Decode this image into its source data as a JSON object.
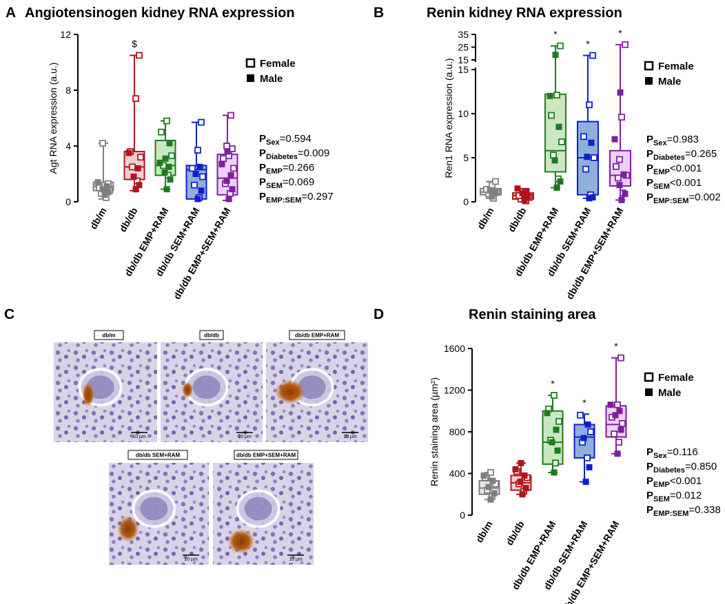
{
  "groups": [
    "db/m",
    "db/db",
    "db/db EMP+RAM",
    "db/db SEM+RAM",
    "db/db EMP+SEM+RAM"
  ],
  "colors": [
    "#7f7f7f",
    "#b0151d",
    "#1f7a1f",
    "#1020c8",
    "#7e1fa0"
  ],
  "fills": [
    "#e6e6e6",
    "#f2d0d2",
    "#c9e8c2",
    "#8fb0dd",
    "#efd0f6"
  ],
  "legend": {
    "female": "Female",
    "male": "Male"
  },
  "panels": {
    "A": {
      "letter": "A",
      "title": "Angiotensinogen kidney RNA expression",
      "stats": [
        [
          "P",
          "Sex",
          "=0.594"
        ],
        [
          "P",
          "Diabetes",
          "=0.009"
        ],
        [
          "P",
          "EMP",
          "=0.266"
        ],
        [
          "P",
          "SEM",
          "=0.069"
        ],
        [
          "P",
          "EMP:SEM",
          "=0.297"
        ]
      ]
    },
    "B": {
      "letter": "B",
      "title": "Renin kidney RNA expression",
      "stats": [
        [
          "P",
          "Sex",
          "=0.983"
        ],
        [
          "P",
          "Diabetes",
          "=0.265"
        ],
        [
          "P",
          "EMP",
          "<0.001"
        ],
        [
          "P",
          "SEM",
          "<0.001"
        ],
        [
          "P",
          "EMP:SEM",
          "=0.002"
        ]
      ]
    },
    "C": {
      "letter": "C",
      "images": [
        "db/m",
        "db/db",
        "db/db EMP+RAM",
        "db/db SEM+RAM",
        "db/db EMP+SEM+RAM"
      ],
      "scale_bar": "10 µm"
    },
    "D": {
      "letter": "D",
      "title": "Renin staining area",
      "stats": [
        [
          "P",
          "Sex",
          "=0.116"
        ],
        [
          "P",
          "Diabetes",
          "=0.850"
        ],
        [
          "P",
          "EMP",
          "<0.001"
        ],
        [
          "P",
          "SEM",
          "=0.012"
        ],
        [
          "P",
          "EMP:SEM",
          "=0.338"
        ]
      ]
    }
  },
  "chart_data": [
    {
      "type": "box",
      "title": "Angiotensinogen kidney RNA expression",
      "ylabel": "Agt RNA expression (a.u.)",
      "ylim": [
        0,
        12
      ],
      "yticks": [
        "0",
        "4",
        "8",
        "12"
      ],
      "yticks_values": [
        0,
        4,
        8,
        12
      ],
      "categories": [
        "db/m",
        "db/db",
        "db/db EMP+RAM",
        "db/db SEM+RAM",
        "db/db EMP+SEM+RAM"
      ],
      "annotations": [
        "",
        "$",
        "",
        "",
        ""
      ],
      "boxes": [
        {
          "min": 0.2,
          "q1": 0.8,
          "median": 1.1,
          "q3": 1.4,
          "max": 4.2
        },
        {
          "min": 0.8,
          "q1": 1.6,
          "median": 2.5,
          "q3": 3.6,
          "max": 10.5
        },
        {
          "min": 0.9,
          "q1": 1.9,
          "median": 2.6,
          "q3": 4.4,
          "max": 5.8
        },
        {
          "min": 0.2,
          "q1": 0.2,
          "median": 2.3,
          "q3": 2.6,
          "max": 5.7
        },
        {
          "min": 0.1,
          "q1": 0.5,
          "median": 1.7,
          "q3": 3.4,
          "max": 6.2
        }
      ],
      "points": [
        {
          "female": [
            0.3,
            0.6,
            0.8,
            1.0,
            1.2,
            1.3,
            4.2
          ],
          "male": [
            0.5,
            0.7,
            0.9,
            1.1,
            1.4
          ]
        },
        {
          "female": [
            1.5,
            2.5,
            3.2,
            3.6,
            7.4,
            10.5
          ],
          "male": [
            0.9,
            1.2,
            1.8,
            2.4,
            3.5
          ]
        },
        {
          "female": [
            1.9,
            2.6,
            3.3,
            5.0,
            5.8
          ],
          "male": [
            0.9,
            1.6,
            2.1,
            2.5,
            2.8,
            3.1,
            4.2
          ]
        },
        {
          "female": [
            0.3,
            1.2,
            1.8,
            2.4,
            3.7,
            5.7
          ],
          "male": [
            0.2,
            0.8,
            2.0,
            2.5
          ]
        },
        {
          "female": [
            0.6,
            1.3,
            2.4,
            3.1,
            3.3,
            3.8,
            4.0,
            6.2
          ],
          "male": [
            0.2,
            0.9,
            1.5,
            1.9,
            2.7,
            3.6
          ]
        }
      ]
    },
    {
      "type": "box",
      "title": "Renin kidney RNA expression",
      "ylabel": "Ren1 RNA expression (a.u.)",
      "ylim": [
        0,
        35
      ],
      "axis_break": [
        15,
        15
      ],
      "yticks": [
        "0",
        "5",
        "10",
        "15",
        "15",
        "25",
        "35"
      ],
      "yticks_values": [
        0,
        5,
        10,
        15,
        15,
        25,
        35
      ],
      "categories": [
        "db/m",
        "db/db",
        "db/db EMP+RAM",
        "db/db SEM+RAM",
        "db/db EMP+SEM+RAM"
      ],
      "annotations": [
        "",
        "",
        "*",
        "*",
        "*"
      ],
      "boxes": [
        {
          "min": 0.4,
          "q1": 0.8,
          "median": 1.1,
          "q3": 1.5,
          "max": 2.3
        },
        {
          "min": 0.1,
          "q1": 0.3,
          "median": 0.7,
          "q3": 1.0,
          "max": 1.5
        },
        {
          "min": 1.6,
          "q1": 3.4,
          "median": 5.8,
          "q3": 12.2,
          "max": 26.0
        },
        {
          "min": 0.4,
          "q1": 0.8,
          "median": 5.0,
          "q3": 9.1,
          "max": 18.5
        },
        {
          "min": 0.2,
          "q1": 1.8,
          "median": 3.0,
          "q3": 5.8,
          "max": 27.0
        }
      ],
      "points": [
        {
          "female": [
            0.4,
            0.9,
            1.1,
            1.4,
            1.9,
            2.3
          ],
          "male": [
            0.6,
            1.0,
            1.3
          ]
        },
        {
          "female": [
            0.1,
            0.3,
            0.5,
            0.7,
            0.9
          ],
          "male": [
            0.2,
            0.6,
            1.0,
            1.2,
            1.5
          ]
        },
        {
          "female": [
            2.6,
            5.3,
            6.8,
            9.8,
            12.1,
            26.0
          ],
          "male": [
            1.6,
            2.3,
            4.7,
            8.5,
            12.0,
            19.0
          ]
        },
        {
          "female": [
            0.8,
            3.7,
            5.0,
            7.4,
            11.0,
            18.5
          ],
          "male": [
            0.4,
            0.5,
            5.1,
            6.7
          ]
        },
        {
          "female": [
            1.0,
            2.7,
            3.0,
            4.0,
            9.6,
            27.0,
            4.8
          ],
          "male": [
            0.2,
            0.9,
            1.9,
            3.1,
            7.1,
            12.4
          ]
        }
      ]
    },
    {
      "type": "box",
      "title": "Renin staining area",
      "ylabel": "Renin staining area (µm²)",
      "ylim": [
        0,
        1600
      ],
      "yticks": [
        "0",
        "400",
        "800",
        "1200",
        "1600"
      ],
      "yticks_values": [
        0,
        400,
        800,
        1200,
        1600
      ],
      "categories": [
        "db/m",
        "db/db",
        "db/db EMP+RAM",
        "db/db SEM+RAM",
        "db/db EMP+SEM+RAM"
      ],
      "annotations": [
        "",
        "",
        "*",
        "*",
        "*"
      ],
      "boxes": [
        {
          "min": 150,
          "q1": 200,
          "median": 260,
          "q3": 330,
          "max": 410
        },
        {
          "min": 200,
          "q1": 240,
          "median": 310,
          "q3": 380,
          "max": 500
        },
        {
          "min": 410,
          "q1": 490,
          "median": 700,
          "q3": 1000,
          "max": 1150
        },
        {
          "min": 320,
          "q1": 550,
          "median": 750,
          "q3": 870,
          "max": 970
        },
        {
          "min": 590,
          "q1": 750,
          "median": 870,
          "q3": 1050,
          "max": 1510
        }
      ],
      "points": [
        {
          "female": [
            180,
            240,
            300,
            360,
            410
          ],
          "male": [
            150,
            210,
            270,
            330,
            380
          ]
        },
        {
          "female": [
            230,
            300,
            360,
            420
          ],
          "male": [
            200,
            260,
            320,
            380,
            440,
            500
          ]
        },
        {
          "female": [
            500,
            720,
            900,
            1020,
            1150
          ],
          "male": [
            410,
            620,
            700,
            820,
            980
          ]
        },
        {
          "female": [
            550,
            700,
            800,
            960
          ],
          "male": [
            320,
            460,
            740,
            870
          ]
        },
        {
          "female": [
            700,
            780,
            880,
            940,
            1060,
            1510
          ],
          "male": [
            590,
            820,
            960,
            1000,
            1060
          ]
        }
      ]
    }
  ]
}
